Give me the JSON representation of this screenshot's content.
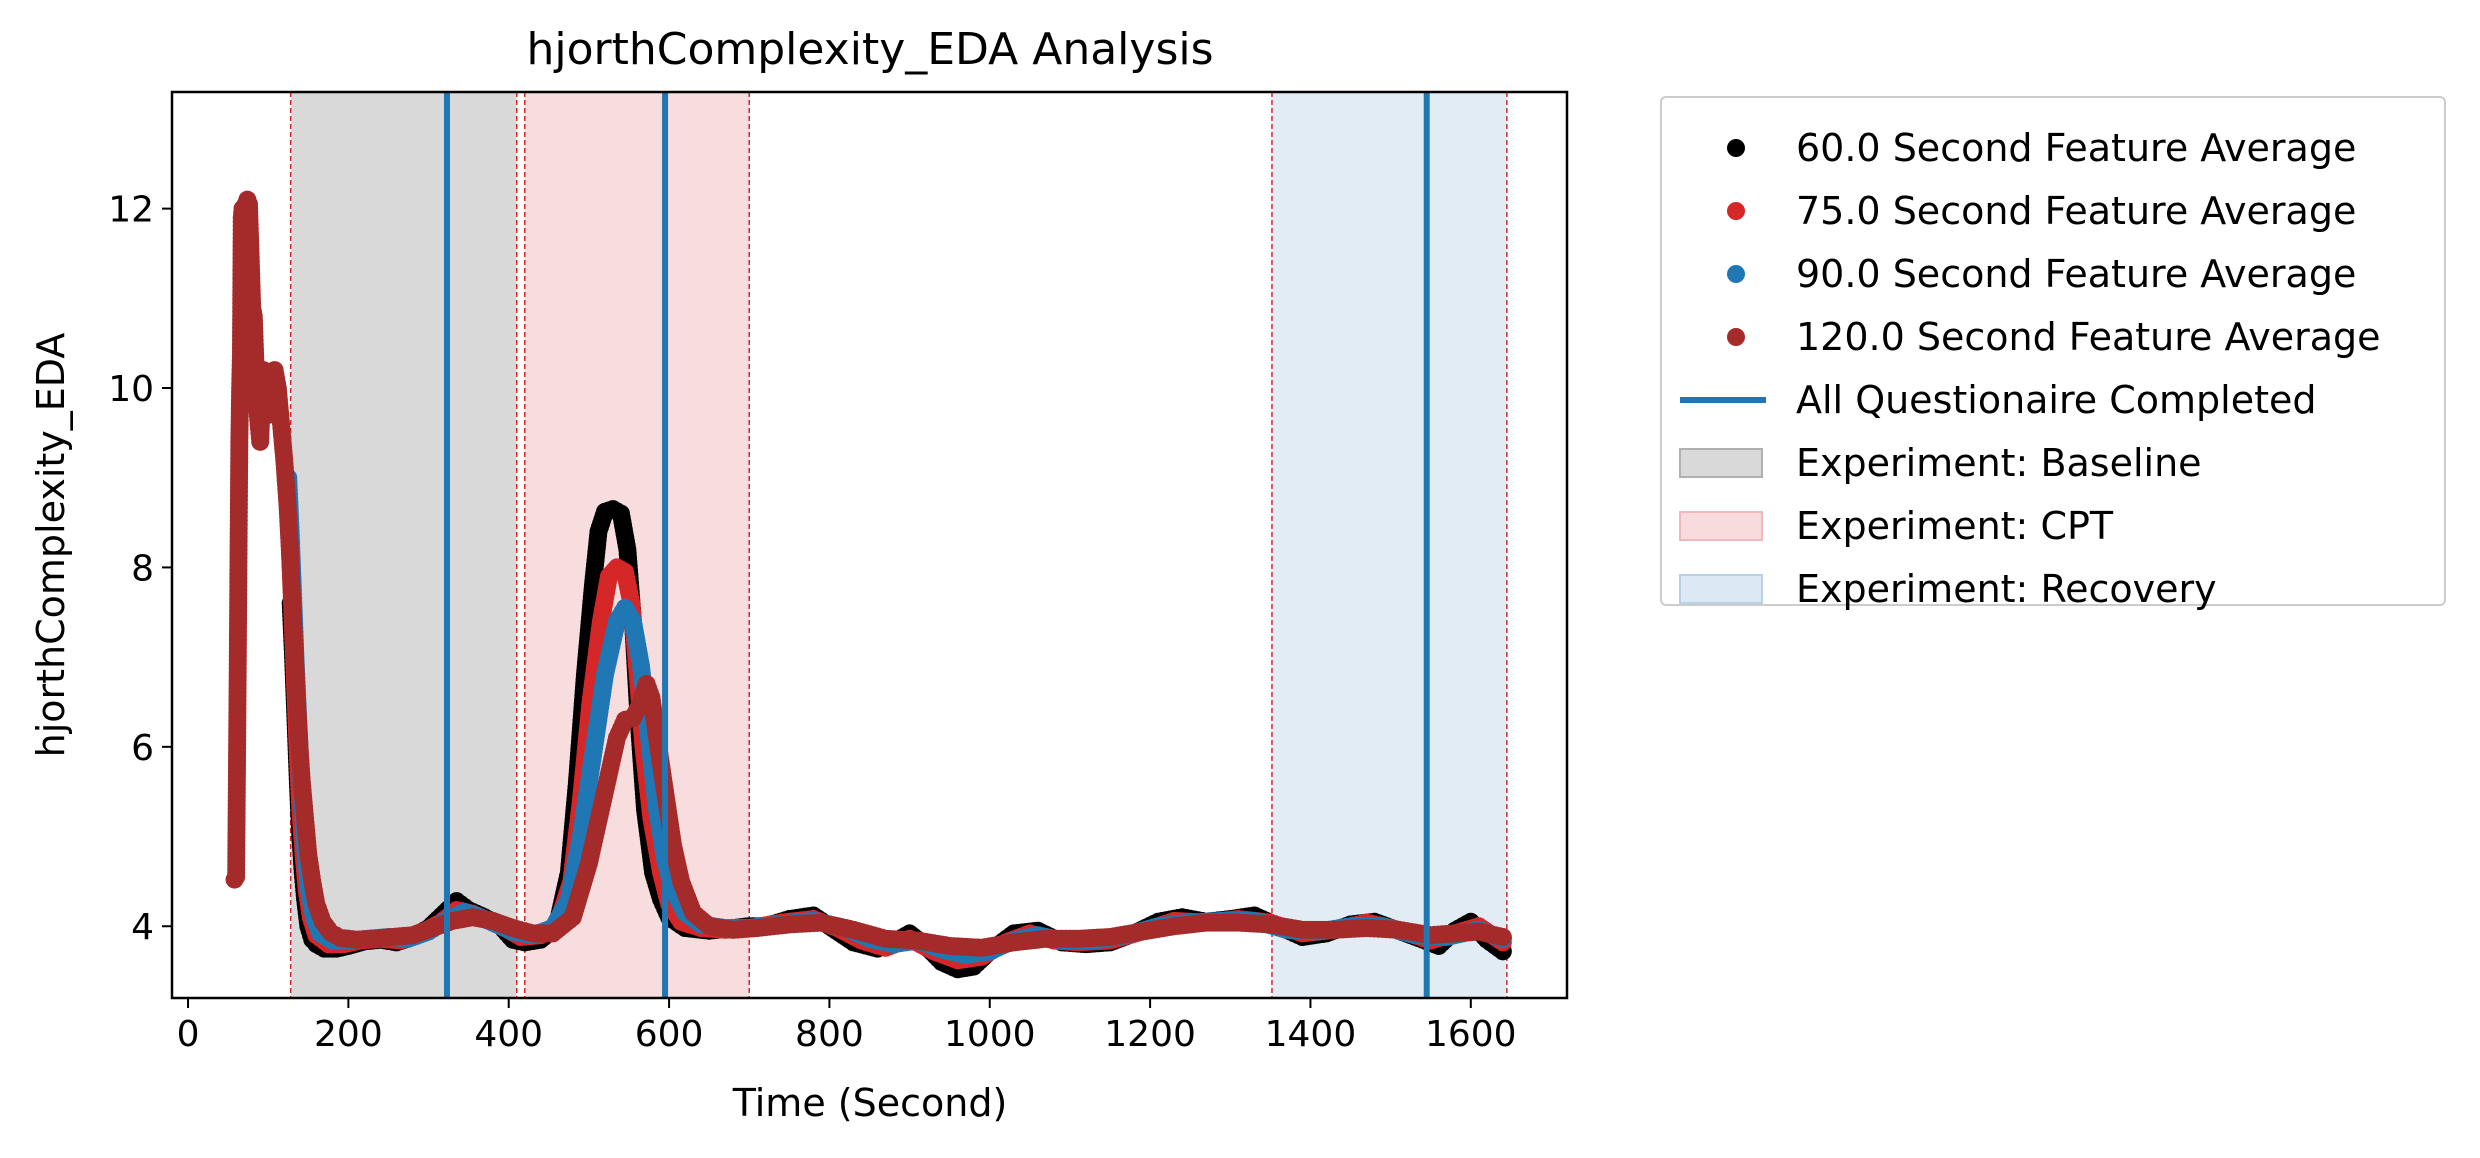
{
  "chart_data": {
    "type": "scatter",
    "title": "hjorthComplexity_EDA Analysis",
    "xlabel": "Time (Second)",
    "ylabel": "hjorthComplexity_EDA",
    "xlim": [
      -20,
      1720
    ],
    "ylim": [
      3.2,
      13.3
    ],
    "xticks": [
      0,
      200,
      400,
      600,
      800,
      1000,
      1200,
      1400,
      1600
    ],
    "yticks": [
      4,
      6,
      8,
      10,
      12
    ],
    "grid": false,
    "legend_position": "outside-right",
    "series": [
      {
        "name": "60.0 Second Feature Average",
        "color": "#000000",
        "points": [
          [
            128,
            7.6
          ],
          [
            131,
            7.0
          ],
          [
            134,
            6.3
          ],
          [
            137,
            5.6
          ],
          [
            140,
            5.0
          ],
          [
            143,
            4.6
          ],
          [
            146,
            4.3
          ],
          [
            150,
            4.0
          ],
          [
            155,
            3.85
          ],
          [
            160,
            3.8
          ],
          [
            170,
            3.75
          ],
          [
            185,
            3.75
          ],
          [
            200,
            3.78
          ],
          [
            220,
            3.83
          ],
          [
            240,
            3.85
          ],
          [
            260,
            3.82
          ],
          [
            280,
            3.88
          ],
          [
            300,
            3.98
          ],
          [
            320,
            4.15
          ],
          [
            335,
            4.28
          ],
          [
            350,
            4.18
          ],
          [
            370,
            4.1
          ],
          [
            390,
            4.0
          ],
          [
            405,
            3.85
          ],
          [
            420,
            3.82
          ],
          [
            440,
            3.85
          ],
          [
            460,
            4.0
          ],
          [
            475,
            4.6
          ],
          [
            485,
            5.6
          ],
          [
            495,
            6.8
          ],
          [
            505,
            7.8
          ],
          [
            512,
            8.4
          ],
          [
            520,
            8.62
          ],
          [
            530,
            8.65
          ],
          [
            540,
            8.6
          ],
          [
            548,
            8.2
          ],
          [
            555,
            7.4
          ],
          [
            562,
            6.3
          ],
          [
            570,
            5.3
          ],
          [
            580,
            4.6
          ],
          [
            590,
            4.3
          ],
          [
            600,
            4.1
          ],
          [
            620,
            3.98
          ],
          [
            650,
            3.95
          ],
          [
            680,
            3.98
          ],
          [
            700,
            4.0
          ],
          [
            720,
            4.0
          ],
          [
            750,
            4.08
          ],
          [
            780,
            4.12
          ],
          [
            800,
            4.0
          ],
          [
            830,
            3.82
          ],
          [
            860,
            3.75
          ],
          [
            880,
            3.82
          ],
          [
            900,
            3.92
          ],
          [
            920,
            3.78
          ],
          [
            940,
            3.6
          ],
          [
            960,
            3.52
          ],
          [
            980,
            3.55
          ],
          [
            1000,
            3.72
          ],
          [
            1030,
            3.92
          ],
          [
            1060,
            3.95
          ],
          [
            1090,
            3.82
          ],
          [
            1120,
            3.8
          ],
          [
            1150,
            3.82
          ],
          [
            1180,
            3.92
          ],
          [
            1210,
            4.05
          ],
          [
            1240,
            4.1
          ],
          [
            1270,
            4.05
          ],
          [
            1300,
            4.08
          ],
          [
            1330,
            4.12
          ],
          [
            1360,
            4.0
          ],
          [
            1390,
            3.88
          ],
          [
            1420,
            3.92
          ],
          [
            1450,
            4.02
          ],
          [
            1480,
            4.05
          ],
          [
            1510,
            3.95
          ],
          [
            1540,
            3.85
          ],
          [
            1560,
            3.78
          ],
          [
            1580,
            3.95
          ],
          [
            1600,
            4.05
          ],
          [
            1620,
            3.85
          ],
          [
            1640,
            3.72
          ]
        ]
      },
      {
        "name": "75.0 Second Feature Average",
        "color": "#d62728",
        "points": [
          [
            125,
            8.6
          ],
          [
            128,
            8.0
          ],
          [
            131,
            7.3
          ],
          [
            134,
            6.6
          ],
          [
            137,
            5.9
          ],
          [
            140,
            5.3
          ],
          [
            144,
            4.8
          ],
          [
            148,
            4.4
          ],
          [
            153,
            4.1
          ],
          [
            160,
            3.9
          ],
          [
            175,
            3.8
          ],
          [
            195,
            3.8
          ],
          [
            215,
            3.84
          ],
          [
            240,
            3.86
          ],
          [
            265,
            3.84
          ],
          [
            290,
            3.92
          ],
          [
            315,
            4.04
          ],
          [
            335,
            4.18
          ],
          [
            355,
            4.14
          ],
          [
            375,
            4.06
          ],
          [
            395,
            3.98
          ],
          [
            415,
            3.88
          ],
          [
            440,
            3.9
          ],
          [
            460,
            4.0
          ],
          [
            478,
            4.5
          ],
          [
            490,
            5.4
          ],
          [
            502,
            6.5
          ],
          [
            515,
            7.4
          ],
          [
            525,
            7.9
          ],
          [
            535,
            8.0
          ],
          [
            545,
            7.95
          ],
          [
            553,
            7.6
          ],
          [
            560,
            6.9
          ],
          [
            568,
            6.0
          ],
          [
            578,
            5.2
          ],
          [
            590,
            4.6
          ],
          [
            600,
            4.25
          ],
          [
            615,
            4.05
          ],
          [
            640,
            3.98
          ],
          [
            670,
            3.96
          ],
          [
            700,
            3.98
          ],
          [
            740,
            4.04
          ],
          [
            780,
            4.08
          ],
          [
            810,
            3.98
          ],
          [
            840,
            3.84
          ],
          [
            870,
            3.76
          ],
          [
            900,
            3.86
          ],
          [
            930,
            3.72
          ],
          [
            960,
            3.62
          ],
          [
            990,
            3.66
          ],
          [
            1020,
            3.82
          ],
          [
            1050,
            3.92
          ],
          [
            1080,
            3.84
          ],
          [
            1110,
            3.82
          ],
          [
            1150,
            3.84
          ],
          [
            1190,
            3.94
          ],
          [
            1230,
            4.06
          ],
          [
            1270,
            4.04
          ],
          [
            1310,
            4.08
          ],
          [
            1350,
            4.04
          ],
          [
            1390,
            3.92
          ],
          [
            1430,
            3.96
          ],
          [
            1470,
            4.04
          ],
          [
            1510,
            3.96
          ],
          [
            1550,
            3.84
          ],
          [
            1580,
            3.92
          ],
          [
            1610,
            4.0
          ],
          [
            1640,
            3.82
          ]
        ]
      },
      {
        "name": "90.0 Second Feature Average",
        "color": "#1f77b4",
        "points": [
          [
            125,
            9.0
          ],
          [
            128,
            8.4
          ],
          [
            131,
            7.7
          ],
          [
            134,
            7.0
          ],
          [
            138,
            6.2
          ],
          [
            142,
            5.5
          ],
          [
            146,
            4.9
          ],
          [
            151,
            4.4
          ],
          [
            157,
            4.1
          ],
          [
            165,
            3.92
          ],
          [
            180,
            3.84
          ],
          [
            200,
            3.84
          ],
          [
            225,
            3.86
          ],
          [
            250,
            3.88
          ],
          [
            275,
            3.86
          ],
          [
            300,
            3.94
          ],
          [
            325,
            4.08
          ],
          [
            345,
            4.16
          ],
          [
            365,
            4.1
          ],
          [
            385,
            4.02
          ],
          [
            405,
            3.94
          ],
          [
            430,
            3.9
          ],
          [
            455,
            3.98
          ],
          [
            475,
            4.3
          ],
          [
            490,
            5.0
          ],
          [
            505,
            5.9
          ],
          [
            520,
            6.8
          ],
          [
            535,
            7.4
          ],
          [
            545,
            7.55
          ],
          [
            555,
            7.4
          ],
          [
            565,
            6.9
          ],
          [
            575,
            6.1
          ],
          [
            585,
            5.3
          ],
          [
            595,
            4.75
          ],
          [
            605,
            4.4
          ],
          [
            620,
            4.15
          ],
          [
            640,
            4.02
          ],
          [
            670,
            3.98
          ],
          [
            700,
            3.98
          ],
          [
            740,
            4.02
          ],
          [
            780,
            4.06
          ],
          [
            820,
            3.98
          ],
          [
            850,
            3.86
          ],
          [
            880,
            3.8
          ],
          [
            910,
            3.84
          ],
          [
            940,
            3.74
          ],
          [
            970,
            3.68
          ],
          [
            1000,
            3.72
          ],
          [
            1030,
            3.84
          ],
          [
            1060,
            3.9
          ],
          [
            1090,
            3.84
          ],
          [
            1130,
            3.84
          ],
          [
            1170,
            3.9
          ],
          [
            1210,
            4.0
          ],
          [
            1250,
            4.04
          ],
          [
            1290,
            4.06
          ],
          [
            1330,
            4.06
          ],
          [
            1370,
            3.96
          ],
          [
            1410,
            3.94
          ],
          [
            1450,
            4.0
          ],
          [
            1490,
            4.0
          ],
          [
            1530,
            3.9
          ],
          [
            1570,
            3.88
          ],
          [
            1610,
            3.96
          ],
          [
            1640,
            3.86
          ]
        ]
      },
      {
        "name": "120.0 Second Feature Average",
        "color": "#a52a2a",
        "points": [
          [
            58,
            4.52
          ],
          [
            60,
            4.55
          ],
          [
            62,
            6.92
          ],
          [
            63,
            8.2
          ],
          [
            64,
            9.4
          ],
          [
            65,
            10.0
          ],
          [
            66,
            10.4
          ],
          [
            67,
            11.9
          ],
          [
            68,
            12.0
          ],
          [
            70,
            11.95
          ],
          [
            72,
            12.05
          ],
          [
            74,
            12.1
          ],
          [
            76,
            12.05
          ],
          [
            78,
            11.5
          ],
          [
            80,
            10.9
          ],
          [
            82,
            10.8
          ],
          [
            84,
            10.3
          ],
          [
            86,
            9.8
          ],
          [
            88,
            9.6
          ],
          [
            90,
            9.4
          ],
          [
            92,
            9.9
          ],
          [
            94,
            10.2
          ],
          [
            96,
            10.1
          ],
          [
            100,
            9.7
          ],
          [
            104,
            9.8
          ],
          [
            108,
            10.2
          ],
          [
            112,
            10.0
          ],
          [
            116,
            9.6
          ],
          [
            120,
            9.2
          ],
          [
            124,
            8.7
          ],
          [
            127,
            8.2
          ],
          [
            130,
            7.6
          ],
          [
            133,
            7.1
          ],
          [
            136,
            6.5
          ],
          [
            139,
            6.0
          ],
          [
            142,
            5.6
          ],
          [
            146,
            5.2
          ],
          [
            150,
            4.8
          ],
          [
            155,
            4.5
          ],
          [
            160,
            4.25
          ],
          [
            168,
            4.05
          ],
          [
            178,
            3.93
          ],
          [
            190,
            3.87
          ],
          [
            210,
            3.85
          ],
          [
            230,
            3.86
          ],
          [
            255,
            3.88
          ],
          [
            280,
            3.9
          ],
          [
            305,
            3.98
          ],
          [
            330,
            4.06
          ],
          [
            355,
            4.1
          ],
          [
            380,
            4.06
          ],
          [
            405,
            3.98
          ],
          [
            430,
            3.92
          ],
          [
            455,
            3.92
          ],
          [
            480,
            4.1
          ],
          [
            500,
            4.7
          ],
          [
            520,
            5.5
          ],
          [
            535,
            6.1
          ],
          [
            545,
            6.3
          ],
          [
            555,
            6.32
          ],
          [
            565,
            6.5
          ],
          [
            572,
            6.7
          ],
          [
            578,
            6.55
          ],
          [
            585,
            6.1
          ],
          [
            595,
            5.5
          ],
          [
            605,
            4.9
          ],
          [
            615,
            4.5
          ],
          [
            630,
            4.15
          ],
          [
            650,
            4.0
          ],
          [
            680,
            3.96
          ],
          [
            710,
            3.98
          ],
          [
            750,
            4.02
          ],
          [
            790,
            4.04
          ],
          [
            830,
            3.96
          ],
          [
            870,
            3.86
          ],
          [
            910,
            3.84
          ],
          [
            950,
            3.78
          ],
          [
            990,
            3.76
          ],
          [
            1030,
            3.82
          ],
          [
            1070,
            3.86
          ],
          [
            1110,
            3.86
          ],
          [
            1150,
            3.88
          ],
          [
            1190,
            3.94
          ],
          [
            1230,
            4.0
          ],
          [
            1270,
            4.04
          ],
          [
            1310,
            4.04
          ],
          [
            1350,
            4.02
          ],
          [
            1390,
            3.96
          ],
          [
            1430,
            3.96
          ],
          [
            1470,
            3.98
          ],
          [
            1510,
            3.96
          ],
          [
            1550,
            3.9
          ],
          [
            1580,
            3.92
          ],
          [
            1610,
            3.94
          ],
          [
            1640,
            3.88
          ]
        ]
      }
    ],
    "vertical_lines": {
      "name": "All Questionaire Completed",
      "color": "#1f77b4",
      "x": [
        323,
        595,
        1545
      ]
    },
    "regions": [
      {
        "name": "Experiment: Baseline",
        "color": "#bfbfbf",
        "start": 128,
        "end": 410
      },
      {
        "name": "Experiment: CPT",
        "color": "#f4c6c8",
        "start": 420,
        "end": 700
      },
      {
        "name": "Experiment: Recovery",
        "color": "#cfe0ee",
        "start": 1352,
        "end": 1645
      }
    ],
    "region_boundary_color": "#d62728"
  }
}
